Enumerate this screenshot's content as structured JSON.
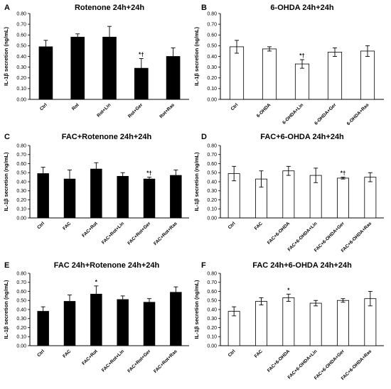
{
  "chart_data": [
    {
      "panel": "A",
      "type": "bar",
      "title": "Rotenone 24h+24h",
      "ylabel": "IL-1β secretion (ng/mL)",
      "ylim": [
        0,
        0.8
      ],
      "yticks": [
        "0.00",
        "0.10",
        "0.20",
        "0.30",
        "0.40",
        "0.50",
        "0.60",
        "0.70",
        "0.80"
      ],
      "bar_fill": "#000000",
      "categories": [
        "Ctrl",
        "Rot",
        "Rot+Lin",
        "Rot+Ger",
        "Rot+Ras"
      ],
      "values": [
        0.49,
        0.58,
        0.58,
        0.29,
        0.4
      ],
      "errors": [
        0.06,
        0.03,
        0.1,
        0.09,
        0.08
      ],
      "annotations": [
        "",
        "",
        "",
        "*†",
        ""
      ]
    },
    {
      "panel": "B",
      "type": "bar",
      "title": "6-OHDA 24h+24h",
      "ylabel": "IL-1β secretion (ng/mL)",
      "ylim": [
        0,
        0.8
      ],
      "yticks": [
        "0.00",
        "0.10",
        "0.20",
        "0.30",
        "0.40",
        "0.50",
        "0.60",
        "0.70",
        "0.80"
      ],
      "bar_fill": "#ffffff",
      "categories": [
        "Ctrl",
        "6-OHDA",
        "6-OHDA+Lin",
        "6-OHDA+Ger",
        "6-OHDA+Ras"
      ],
      "values": [
        0.49,
        0.47,
        0.33,
        0.44,
        0.45
      ],
      "errors": [
        0.06,
        0.02,
        0.04,
        0.04,
        0.05
      ],
      "annotations": [
        "",
        "",
        "*†",
        "",
        ""
      ]
    },
    {
      "panel": "C",
      "type": "bar",
      "title": "FAC+Rotenone 24h+24h",
      "ylabel": "IL-1β secretion (ng/mL)",
      "ylim": [
        0,
        0.8
      ],
      "yticks": [
        "0.00",
        "0.10",
        "0.20",
        "0.30",
        "0.40",
        "0.50",
        "0.60",
        "0.70",
        "0.80"
      ],
      "bar_fill": "#000000",
      "categories": [
        "Ctrl",
        "FAC",
        "FAC+Rot",
        "FAC+Rot+Lin",
        "FAC+Rot+Ger",
        "FAC+Rot+Ras"
      ],
      "values": [
        0.49,
        0.43,
        0.54,
        0.46,
        0.43,
        0.47
      ],
      "errors": [
        0.07,
        0.1,
        0.07,
        0.04,
        0.02,
        0.06
      ],
      "annotations": [
        "",
        "",
        "",
        "",
        "*†",
        ""
      ]
    },
    {
      "panel": "D",
      "type": "bar",
      "title": "FAC+6-OHDA 24h+24h",
      "ylabel": "IL-1β secretion (ng/mL)",
      "ylim": [
        0,
        0.8
      ],
      "yticks": [
        "0.00",
        "0.10",
        "0.20",
        "0.30",
        "0.40",
        "0.50",
        "0.60",
        "0.70",
        "0.80"
      ],
      "bar_fill": "#ffffff",
      "categories": [
        "Ctrl",
        "FAC",
        "FAC+6-OHDA",
        "FAC+6-OHDA+Lin",
        "FAC+6-OHDA+Ger",
        "FAC+6-OHDA+Ras"
      ],
      "values": [
        0.49,
        0.43,
        0.52,
        0.47,
        0.44,
        0.45
      ],
      "errors": [
        0.08,
        0.09,
        0.05,
        0.08,
        0.01,
        0.05
      ],
      "annotations": [
        "",
        "",
        "",
        "",
        "*†",
        ""
      ]
    },
    {
      "panel": "E",
      "type": "bar",
      "title": "FAC 24h+Rotenone 24h+24h",
      "ylabel": "IL-1β secretion (ng/mL)",
      "ylim": [
        0,
        0.8
      ],
      "yticks": [
        "0.00",
        "0.10",
        "0.20",
        "0.30",
        "0.40",
        "0.50",
        "0.60",
        "0.70",
        "0.80"
      ],
      "bar_fill": "#000000",
      "categories": [
        "Ctrl",
        "FAC",
        "FAC+Rot",
        "FAC+Rot+Lin",
        "FAC+Rot+Ger",
        "FAC+Rot+Ras"
      ],
      "values": [
        0.38,
        0.49,
        0.57,
        0.51,
        0.48,
        0.59
      ],
      "errors": [
        0.05,
        0.07,
        0.09,
        0.04,
        0.04,
        0.06
      ],
      "annotations": [
        "",
        "",
        "*",
        "",
        "",
        ""
      ]
    },
    {
      "panel": "F",
      "type": "bar",
      "title": "FAC 24h+6-OHDA 24h+24h",
      "ylabel": "IL-1β secretion (ng/mL)",
      "ylim": [
        0,
        0.8
      ],
      "yticks": [
        "0.00",
        "0.10",
        "0.20",
        "0.30",
        "0.40",
        "0.50",
        "0.60",
        "0.70",
        "0.80"
      ],
      "bar_fill": "#ffffff",
      "categories": [
        "Ctrl",
        "FAC",
        "FAC+6-OHDA",
        "FAC+6-OHDA+Lin",
        "FAC+6-OHDA+Ger",
        "FAC+6-OHDA+Ras"
      ],
      "values": [
        0.38,
        0.49,
        0.53,
        0.47,
        0.5,
        0.52
      ],
      "errors": [
        0.05,
        0.04,
        0.04,
        0.03,
        0.02,
        0.08
      ],
      "annotations": [
        "",
        "",
        "*",
        "",
        "",
        ""
      ]
    }
  ]
}
